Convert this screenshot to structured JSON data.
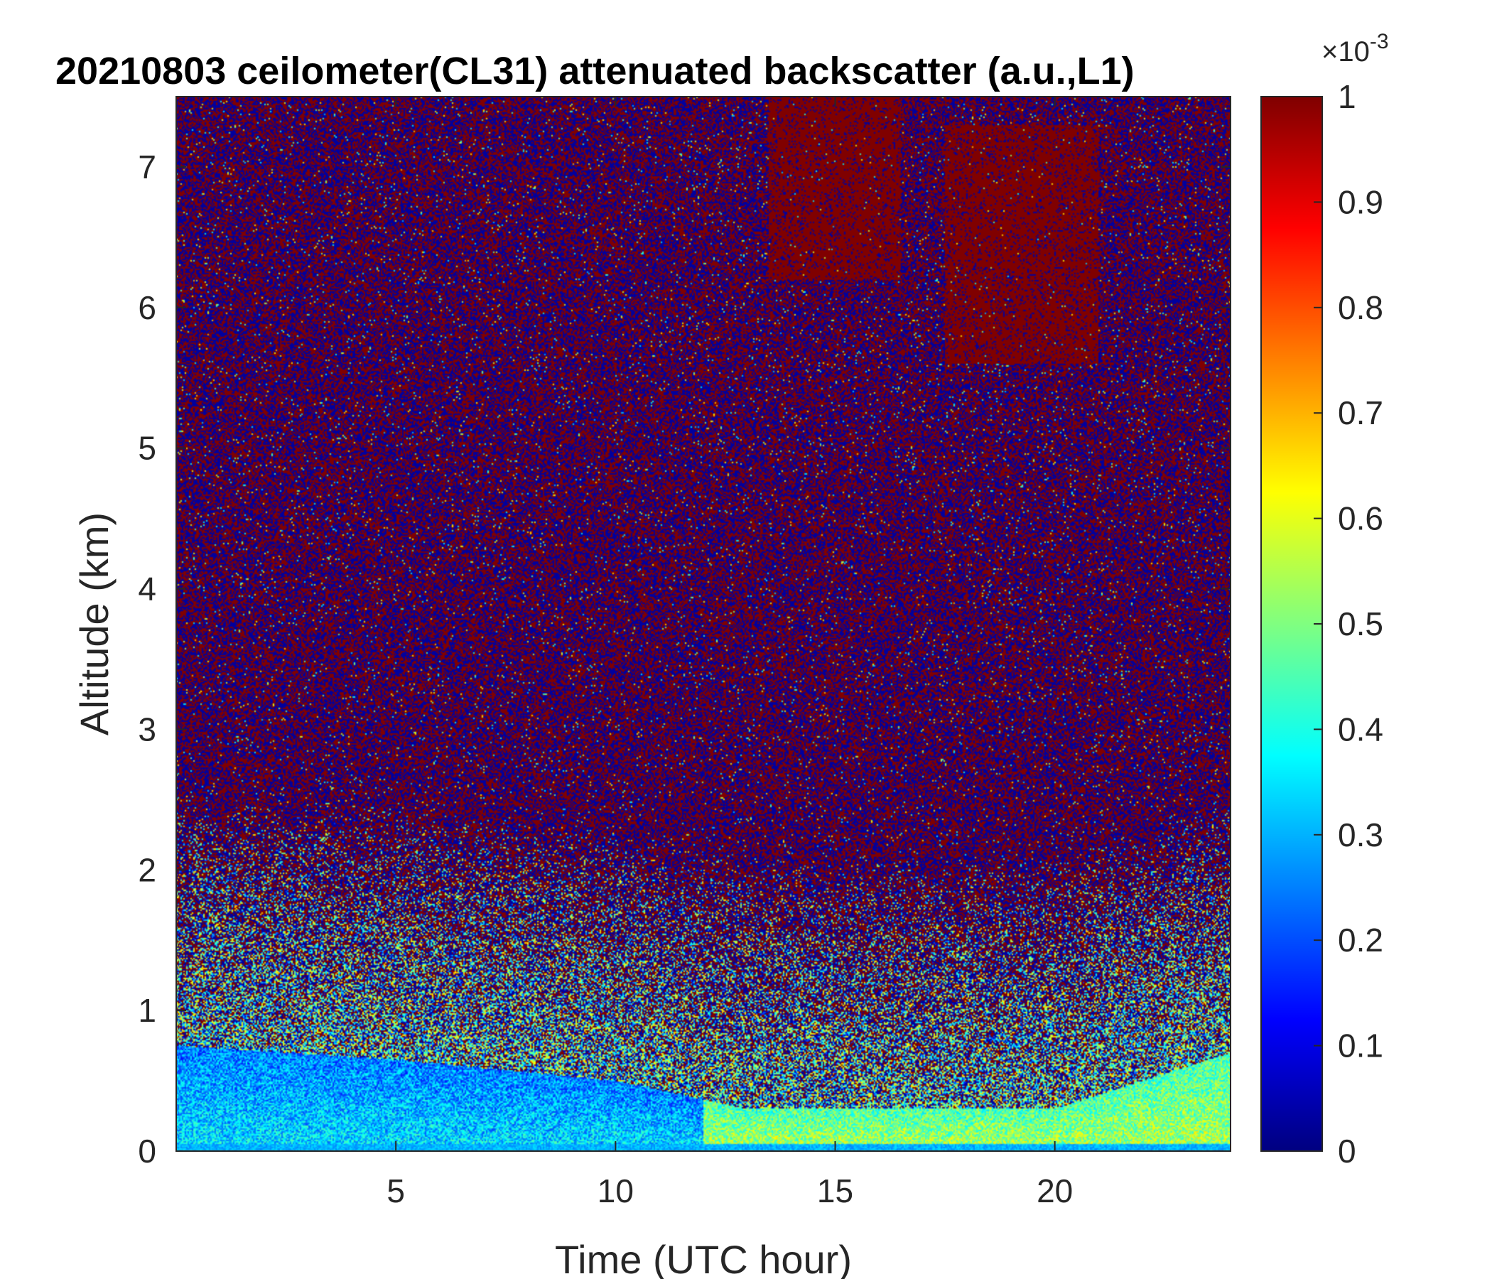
{
  "chart_data": {
    "type": "heatmap",
    "title": "20210803 ceilometer(CL31) attenuated backscatter (a.u.,L1)",
    "xlabel": "Time (UTC hour)",
    "ylabel": "Altitude (km)",
    "xlim": [
      0,
      24
    ],
    "ylim": [
      0,
      7.5
    ],
    "xticks": [
      5,
      10,
      15,
      20
    ],
    "yticks": [
      0,
      1,
      2,
      3,
      4,
      5,
      6,
      7
    ],
    "colorbar": {
      "colormap": "jet",
      "clim": [
        0,
        1
      ],
      "ticks": [
        "0",
        "0.1",
        "0.2",
        "0.3",
        "0.4",
        "0.5",
        "0.6",
        "0.7",
        "0.8",
        "0.9",
        "1"
      ],
      "exponent_base": "×10",
      "exponent": "-3"
    },
    "description_of_field": {
      "background_aloft": "noise mix of 0 and 1",
      "aerosol_layer_top_km": {
        "hours": [
          0,
          5,
          10,
          13,
          15,
          20,
          24
        ],
        "height": [
          0.75,
          0.65,
          0.5,
          0.3,
          0.3,
          0.3,
          0.7
        ]
      },
      "surface_layer_value_morning": 0.35,
      "surface_layer_value_afternoon": 0.55,
      "upper_cloud_patches": [
        {
          "t_range": [
            13.5,
            16.5
          ],
          "z_range": [
            6.2,
            7.5
          ],
          "value": 1
        },
        {
          "t_range": [
            17.5,
            21
          ],
          "z_range": [
            5.6,
            7.3
          ],
          "value": 1
        }
      ]
    }
  }
}
